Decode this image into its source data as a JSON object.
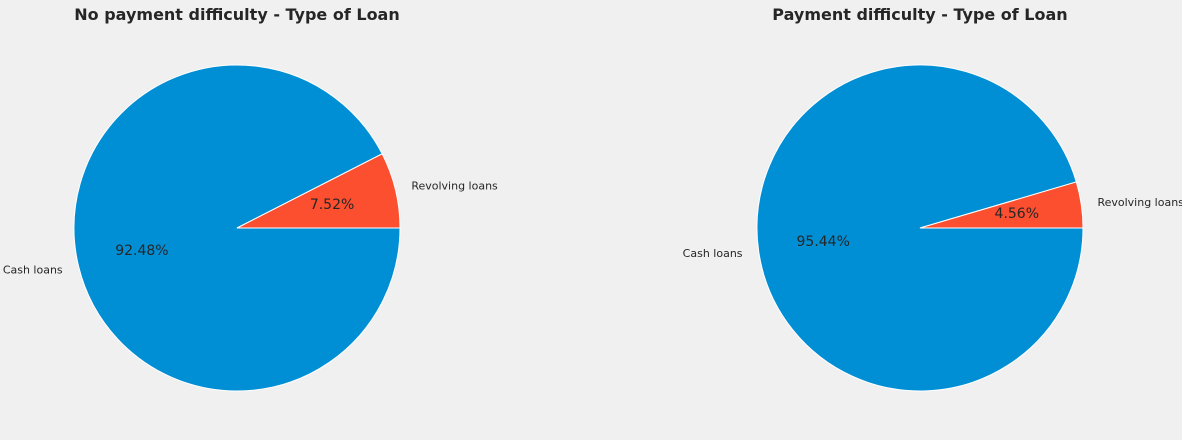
{
  "chart_data": [
    {
      "type": "pie",
      "title": "No payment difficulty - Type of Loan",
      "categories": [
        "Cash loans",
        "Revolving loans"
      ],
      "values": [
        92.48,
        7.52
      ],
      "value_labels": [
        "92.48%",
        "7.52%"
      ],
      "colors": [
        "#008fd5",
        "#fc4f30"
      ],
      "start_angle_deg": 0,
      "direction": "clockwise"
    },
    {
      "type": "pie",
      "title": "Payment difficulty - Type of Loan",
      "categories": [
        "Cash loans",
        "Revolving loans"
      ],
      "values": [
        95.44,
        4.56
      ],
      "value_labels": [
        "95.44%",
        "4.56%"
      ],
      "colors": [
        "#008fd5",
        "#fc4f30"
      ],
      "start_angle_deg": 0,
      "direction": "clockwise"
    }
  ]
}
